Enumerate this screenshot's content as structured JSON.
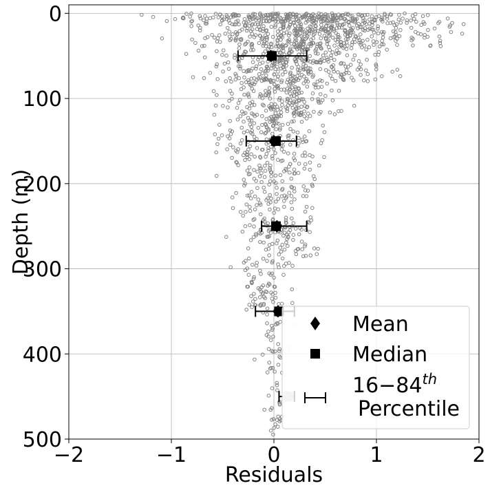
{
  "chart_data": {
    "type": "scatter",
    "title": "",
    "xlabel": "Residuals",
    "ylabel": "Depth (m)",
    "xlim": [
      -2,
      2
    ],
    "ylim": [
      500,
      -10
    ],
    "y_inverted": true,
    "grid": true,
    "xticks": [
      {
        "value": -2,
        "label": "−2"
      },
      {
        "value": -1,
        "label": "−1"
      },
      {
        "value": 0,
        "label": "0"
      },
      {
        "value": 1,
        "label": "1"
      },
      {
        "value": 2,
        "label": "2"
      }
    ],
    "yticks": [
      {
        "value": 0,
        "label": "0"
      },
      {
        "value": 100,
        "label": "100"
      },
      {
        "value": 200,
        "label": "200"
      },
      {
        "value": 300,
        "label": "300"
      },
      {
        "value": 400,
        "label": "400"
      },
      {
        "value": 500,
        "label": "500"
      }
    ],
    "scatter_color": "#808080",
    "marker_color": "#000000",
    "scatter_bands": [
      {
        "depth_min": 0,
        "depth_max": 10,
        "x_min": -1.3,
        "x_max": 1.9,
        "count": 260
      },
      {
        "depth_min": 10,
        "depth_max": 40,
        "x_min": -1.1,
        "x_max": 1.9,
        "count": 420
      },
      {
        "depth_min": 40,
        "depth_max": 80,
        "x_min": -0.9,
        "x_max": 1.3,
        "count": 320
      },
      {
        "depth_min": 80,
        "depth_max": 120,
        "x_min": -0.6,
        "x_max": 0.8,
        "count": 180
      },
      {
        "depth_min": 120,
        "depth_max": 170,
        "x_min": -0.7,
        "x_max": 0.6,
        "count": 150
      },
      {
        "depth_min": 170,
        "depth_max": 230,
        "x_min": -0.6,
        "x_max": 0.6,
        "count": 120
      },
      {
        "depth_min": 230,
        "depth_max": 300,
        "x_min": -0.5,
        "x_max": 0.55,
        "count": 130
      },
      {
        "depth_min": 300,
        "depth_max": 350,
        "x_min": -0.4,
        "x_max": 0.2,
        "count": 60
      },
      {
        "depth_min": 350,
        "depth_max": 420,
        "x_min": -0.2,
        "x_max": 0.25,
        "count": 40
      },
      {
        "depth_min": 420,
        "depth_max": 495,
        "x_min": -0.1,
        "x_max": 0.2,
        "count": 30
      }
    ],
    "bins": [
      {
        "depth": 50,
        "mean": -0.03,
        "median": -0.02,
        "p16": -0.35,
        "p84": 0.32
      },
      {
        "depth": 150,
        "mean": 0.0,
        "median": 0.02,
        "p16": -0.27,
        "p84": 0.22
      },
      {
        "depth": 250,
        "mean": 0.03,
        "median": 0.02,
        "p16": -0.12,
        "p84": 0.32
      },
      {
        "depth": 350,
        "mean": 0.04,
        "median": 0.05,
        "p16": -0.18,
        "p84": 0.2
      },
      {
        "depth": 450,
        "mean": 0.14,
        "median": 0.14,
        "p16": 0.05,
        "p84": 0.2
      }
    ],
    "legend": {
      "position": "bottom-right",
      "entries": [
        {
          "marker": "diamond",
          "label": "Mean"
        },
        {
          "marker": "square",
          "label": "Median"
        },
        {
          "marker": "errorbar",
          "label_main": "16−84",
          "label_sup": "th",
          "label_line2": "Percentile"
        }
      ]
    }
  }
}
